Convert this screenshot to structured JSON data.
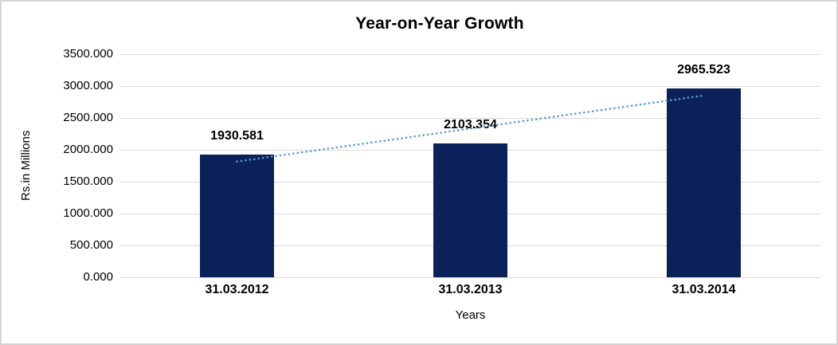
{
  "chart_data": {
    "type": "bar",
    "title": "Year-on-Year Growth",
    "categories": [
      "31.03.2012",
      "31.03.2013",
      "31.03.2014"
    ],
    "values": [
      1930.581,
      2103.354,
      2965.523
    ],
    "data_labels": [
      "1930.581",
      "2103.354",
      "2965.523"
    ],
    "xlabel": "Years",
    "ylabel": "Rs.in Millions",
    "ylim": [
      0,
      3500
    ],
    "ytick_step": 500,
    "ytick_labels": [
      "0.000",
      "500.000",
      "1000.000",
      "1500.000",
      "2000.000",
      "2500.000",
      "3000.000",
      "3500.000"
    ],
    "grid": true,
    "legend_position": "none",
    "bar_color": "#0A2159",
    "gridline_color": "#D9D9D9",
    "trendline": {
      "type": "linear",
      "style": "dotted",
      "color": "#5B9BD5"
    }
  }
}
